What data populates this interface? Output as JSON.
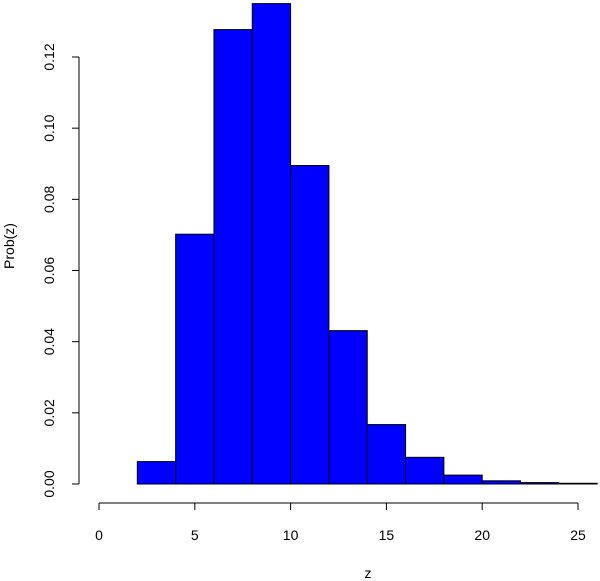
{
  "chart_data": {
    "type": "bar",
    "title": "",
    "xlabel": "z",
    "ylabel": "Prob(z)",
    "xlim": [
      0,
      26
    ],
    "ylim": [
      0,
      0.135
    ],
    "x_ticks": [
      0,
      5,
      10,
      15,
      20,
      25
    ],
    "x_tick_labels": [
      "0",
      "5",
      "10",
      "15",
      "20",
      "25"
    ],
    "y_ticks": [
      0.0,
      0.02,
      0.04,
      0.06,
      0.08,
      0.1,
      0.12
    ],
    "y_tick_labels": [
      "0.00",
      "0.02",
      "0.04",
      "0.06",
      "0.08",
      "0.10",
      "0.12"
    ],
    "bins": [
      {
        "x0": 2,
        "x1": 4,
        "value": 0.0063
      },
      {
        "x0": 4,
        "x1": 6,
        "value": 0.0702
      },
      {
        "x0": 6,
        "x1": 8,
        "value": 0.1277
      },
      {
        "x0": 8,
        "x1": 10,
        "value": 0.135
      },
      {
        "x0": 10,
        "x1": 12,
        "value": 0.0895
      },
      {
        "x0": 12,
        "x1": 14,
        "value": 0.0431
      },
      {
        "x0": 14,
        "x1": 16,
        "value": 0.0167
      },
      {
        "x0": 16,
        "x1": 18,
        "value": 0.0075
      },
      {
        "x0": 18,
        "x1": 20,
        "value": 0.0025
      },
      {
        "x0": 20,
        "x1": 22,
        "value": 0.0009
      },
      {
        "x0": 22,
        "x1": 24,
        "value": 0.0004
      },
      {
        "x0": 24,
        "x1": 26,
        "value": 0.0002
      }
    ],
    "bar_fill": "#0000ff",
    "bar_stroke": "#000000",
    "grid": false,
    "legend": "none"
  }
}
